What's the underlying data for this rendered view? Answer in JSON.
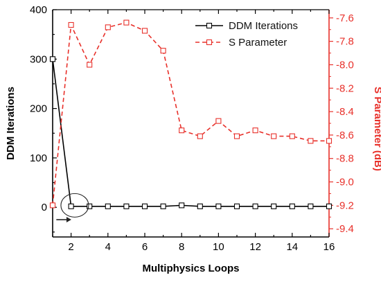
{
  "chart_data": {
    "type": "line",
    "xlabel": "Multiphysics Loops",
    "ylabel_left": "DDM Iterations",
    "ylabel_right": "S Parameter (dB)",
    "xlim": [
      1,
      16
    ],
    "ylim_left": [
      -60,
      400
    ],
    "ylim_right": [
      -9.47,
      -7.53
    ],
    "x_ticks": [
      2,
      4,
      6,
      8,
      10,
      12,
      14,
      16
    ],
    "y_left_ticks": [
      0,
      100,
      200,
      300,
      400
    ],
    "y_right_ticks": [
      -9.4,
      -9.2,
      -9.0,
      -8.8,
      -8.6,
      -8.4,
      -8.2,
      -8.0,
      -7.8,
      -7.6
    ],
    "grid": false,
    "legend_position": "top-right",
    "colors": {
      "ddm": "#000000",
      "s_param": "#e8302a"
    },
    "series": [
      {
        "name": "DDM Iterations",
        "axis": "left",
        "style": "solid",
        "marker": "square",
        "x": [
          1,
          2,
          3,
          4,
          5,
          6,
          7,
          8,
          9,
          10,
          11,
          12,
          13,
          14,
          15,
          16
        ],
        "y": [
          300,
          2,
          2,
          2,
          2,
          2,
          2,
          4,
          2,
          2,
          2,
          2,
          2,
          2,
          2,
          2
        ]
      },
      {
        "name": "S Parameter",
        "axis": "right",
        "style": "dashed",
        "marker": "square",
        "x": [
          1,
          2,
          3,
          4,
          5,
          6,
          7,
          8,
          9,
          10,
          11,
          12,
          13,
          14,
          15,
          16
        ],
        "y": [
          -9.2,
          -7.66,
          -8.0,
          -7.68,
          -7.64,
          -7.71,
          -7.88,
          -8.56,
          -8.61,
          -8.48,
          -8.61,
          -8.56,
          -8.61,
          -8.61,
          -8.65,
          -8.65
        ]
      }
    ]
  }
}
